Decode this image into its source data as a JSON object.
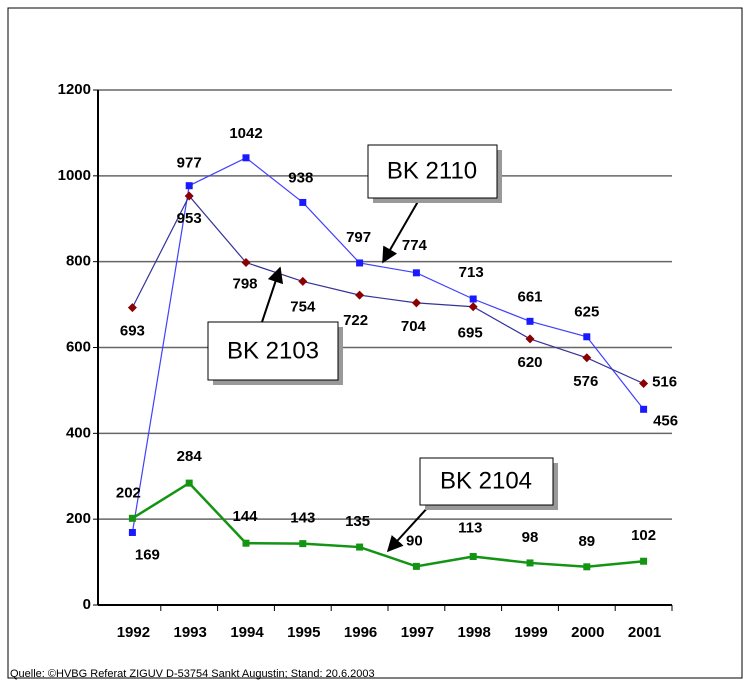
{
  "chart_data": {
    "type": "line",
    "categories": [
      "1992",
      "1993",
      "1994",
      "1995",
      "1996",
      "1997",
      "1998",
      "1999",
      "2000",
      "2001"
    ],
    "series": [
      {
        "name": "BK 2110",
        "color": "#1a1aff",
        "line_color": "#4040ff",
        "marker": "square",
        "values": [
          169,
          977,
          1042,
          938,
          797,
          774,
          713,
          661,
          625,
          456
        ]
      },
      {
        "name": "BK 2103",
        "color": "#8b0000",
        "line_color": "#333399",
        "marker": "diamond",
        "values": [
          693,
          953,
          798,
          754,
          722,
          704,
          695,
          620,
          576,
          516
        ]
      },
      {
        "name": "BK 2104",
        "color": "#139413",
        "line_color": "#139413",
        "marker": "square",
        "values": [
          202,
          284,
          144,
          143,
          135,
          90,
          113,
          98,
          89,
          102
        ]
      }
    ],
    "ylim": [
      0,
      1200
    ],
    "yticks": [
      0,
      200,
      400,
      600,
      800,
      1000,
      1200
    ],
    "grid": true,
    "source": "Quelle: ©HVBG Referat ZIGUV D-53754 Sankt Augustin; Stand: 20.6.2003"
  }
}
